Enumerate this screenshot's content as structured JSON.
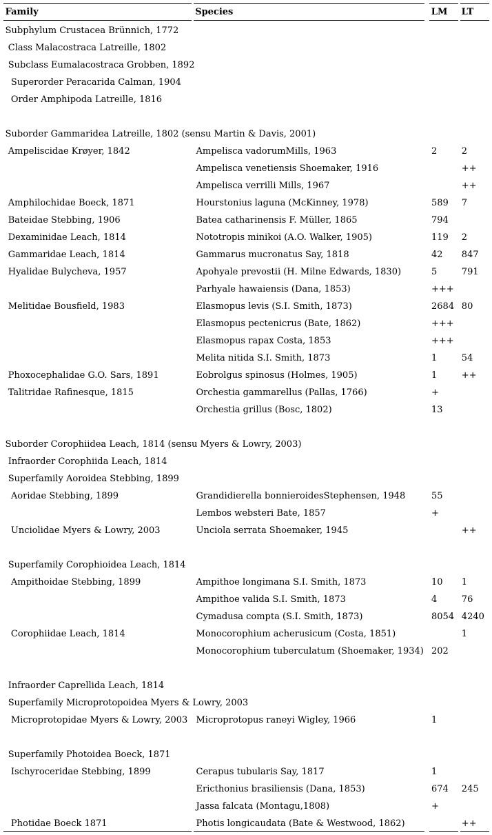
{
  "page": {
    "background": "#ffffff",
    "text_color": "#000000",
    "rule_color": "#000000"
  },
  "table": {
    "columns": [
      {
        "key": "family",
        "label": "Family"
      },
      {
        "key": "species",
        "label": "Species"
      },
      {
        "key": "lm",
        "label": "LM"
      },
      {
        "key": "lt",
        "label": "LT"
      }
    ],
    "rows": [
      {
        "type": "taxon",
        "family": "Subphylum Crustacea Brünnich, 1772",
        "indent": 0
      },
      {
        "type": "taxon",
        "family": "Class Malacostraca Latreille, 1802",
        "indent": 1
      },
      {
        "type": "taxon",
        "family": "Subclass Eumalacostraca Grobben, 1892",
        "indent": 1
      },
      {
        "type": "taxon",
        "family": "Superorder Peracarida Calman, 1904",
        "indent": 2
      },
      {
        "type": "taxon",
        "family": "Order Amphipoda Latreille, 1816",
        "indent": 2
      },
      {
        "type": "blank"
      },
      {
        "type": "taxon",
        "family": "Suborder Gammaridea Latreille, 1802 (sensu Martin & Davis, 2001)",
        "indent": 0
      },
      {
        "type": "species",
        "family": "Ampeliscidae Krøyer, 1842",
        "indent": 1,
        "species": "Ampelisca vadorumMills, 1963",
        "lm": "2",
        "lt": "2"
      },
      {
        "type": "species",
        "family": "",
        "species": "Ampelisca venetiensis Shoemaker, 1916",
        "lm": "",
        "lt": "++"
      },
      {
        "type": "species",
        "family": "",
        "species": "Ampelisca verrilli Mills, 1967",
        "lm": "",
        "lt": "++"
      },
      {
        "type": "species",
        "family": "Amphilochidae Boeck, 1871",
        "indent": 1,
        "species": "Hourstonius laguna (McKinney, 1978)",
        "lm": "589",
        "lt": "7"
      },
      {
        "type": "species",
        "family": "Bateidae Stebbing, 1906",
        "indent": 1,
        "species": "Batea catharinensis F. Müller, 1865",
        "lm": "794",
        "lt": ""
      },
      {
        "type": "species",
        "family": "Dexaminidae Leach, 1814",
        "indent": 1,
        "species": "Nototropis minikoi (A.O. Walker, 1905)",
        "lm": "119",
        "lt": "2"
      },
      {
        "type": "species",
        "family": "Gammaridae Leach, 1814",
        "indent": 1,
        "species": "Gammarus mucronatus Say, 1818",
        "lm": "42",
        "lt": "847"
      },
      {
        "type": "species",
        "family": "Hyalidae Bulycheva, 1957",
        "indent": 1,
        "species": "Apohyale prevostii (H. Milne Edwards, 1830)",
        "lm": "5",
        "lt": "791"
      },
      {
        "type": "species",
        "family": "",
        "species": "Parhyale hawaiensis (Dana, 1853)",
        "lm": "+++",
        "lt": ""
      },
      {
        "type": "species",
        "family": "Melitidae Bousfield, 1983",
        "indent": 1,
        "species": "Elasmopus levis (S.I. Smith, 1873)",
        "lm": "2684",
        "lt": "80"
      },
      {
        "type": "species",
        "family": "",
        "species": "Elasmopus pectenicrus (Bate, 1862)",
        "lm": "+++",
        "lt": ""
      },
      {
        "type": "species",
        "family": "",
        "species": "Elasmopus rapax Costa, 1853",
        "lm": "+++",
        "lt": ""
      },
      {
        "type": "species",
        "family": "",
        "species": "Melita nitida S.I. Smith, 1873",
        "lm": "1",
        "lt": "54"
      },
      {
        "type": "species",
        "family": "Phoxocephalidae G.O. Sars, 1891",
        "indent": 1,
        "species": "Eobrolgus spinosus (Holmes, 1905)",
        "lm": "1",
        "lt": "++"
      },
      {
        "type": "species",
        "family": "Talitridae Rafinesque, 1815",
        "indent": 1,
        "species": "Orchestia gammarellus (Pallas, 1766)",
        "lm": "+",
        "lt": ""
      },
      {
        "type": "species",
        "family": "",
        "species": "Orchestia grillus (Bosc, 1802)",
        "lm": "13",
        "lt": ""
      },
      {
        "type": "blank"
      },
      {
        "type": "taxon",
        "family": "Suborder Corophiidea Leach, 1814 (sensu Myers & Lowry, 2003)",
        "indent": 0
      },
      {
        "type": "taxon",
        "family": "Infraorder Corophiida Leach, 1814",
        "indent": 1
      },
      {
        "type": "taxon",
        "family": "Superfamily Aoroidea Stebbing, 1899",
        "indent": 1
      },
      {
        "type": "species",
        "family": "Aoridae Stebbing, 1899",
        "indent": 2,
        "species": "Grandidierella bonnieroidesStephensen, 1948",
        "lm": "55",
        "lt": ""
      },
      {
        "type": "species",
        "family": "",
        "species": "Lembos websteri Bate, 1857",
        "lm": "+",
        "lt": ""
      },
      {
        "type": "species",
        "family": "Unciolidae Myers & Lowry, 2003",
        "indent": 2,
        "species": "Unciola serrata Shoemaker, 1945",
        "lm": "",
        "lt": "++"
      },
      {
        "type": "blank"
      },
      {
        "type": "taxon",
        "family": "Superfamily Corophioidea Leach, 1814",
        "indent": 1
      },
      {
        "type": "species",
        "family": "Ampithoidae Stebbing, 1899",
        "indent": 2,
        "species": "Ampithoe longimana S.I. Smith, 1873",
        "lm": "10",
        "lt": "1"
      },
      {
        "type": "species",
        "family": "",
        "species": "Ampithoe valida S.I. Smith, 1873",
        "lm": "4",
        "lt": "76"
      },
      {
        "type": "species",
        "family": "",
        "species": "Cymadusa compta (S.I. Smith, 1873)",
        "lm": "8054",
        "lt": "4240"
      },
      {
        "type": "species",
        "family": "Corophiidae Leach, 1814",
        "indent": 2,
        "species": "Monocorophium acherusicum (Costa, 1851)",
        "lm": "",
        "lt": "1"
      },
      {
        "type": "species",
        "family": "",
        "species": "Monocorophium tuberculatum (Shoemaker, 1934)",
        "lm": "202",
        "lt": ""
      },
      {
        "type": "blank"
      },
      {
        "type": "taxon",
        "family": "Infraorder Caprellida Leach, 1814",
        "indent": 1
      },
      {
        "type": "taxon",
        "family": "Superfamily Microprotopoidea Myers & Lowry, 2003",
        "indent": 1
      },
      {
        "type": "species",
        "family": "Microprotopidae Myers & Lowry, 2003",
        "indent": 2,
        "species": "Microprotopus raneyi Wigley, 1966",
        "lm": "1",
        "lt": ""
      },
      {
        "type": "blank"
      },
      {
        "type": "taxon",
        "family": "Superfamily Photoidea Boeck, 1871",
        "indent": 1
      },
      {
        "type": "species",
        "family": "Ischyroceridae Stebbing, 1899",
        "indent": 2,
        "species": "Cerapus tubularis Say, 1817",
        "lm": "1",
        "lt": ""
      },
      {
        "type": "species",
        "family": "",
        "species": "Ericthonius brasiliensis (Dana, 1853)",
        "lm": "674",
        "lt": "245"
      },
      {
        "type": "species",
        "family": "",
        "species": "Jassa falcata (Montagu,1808)",
        "lm": "+",
        "lt": ""
      },
      {
        "type": "species",
        "family": "Photidae Boeck 1871",
        "indent": 2,
        "species": "Photis longicaudata (Bate & Westwood, 1862)",
        "lm": "",
        "lt": "++"
      }
    ]
  }
}
